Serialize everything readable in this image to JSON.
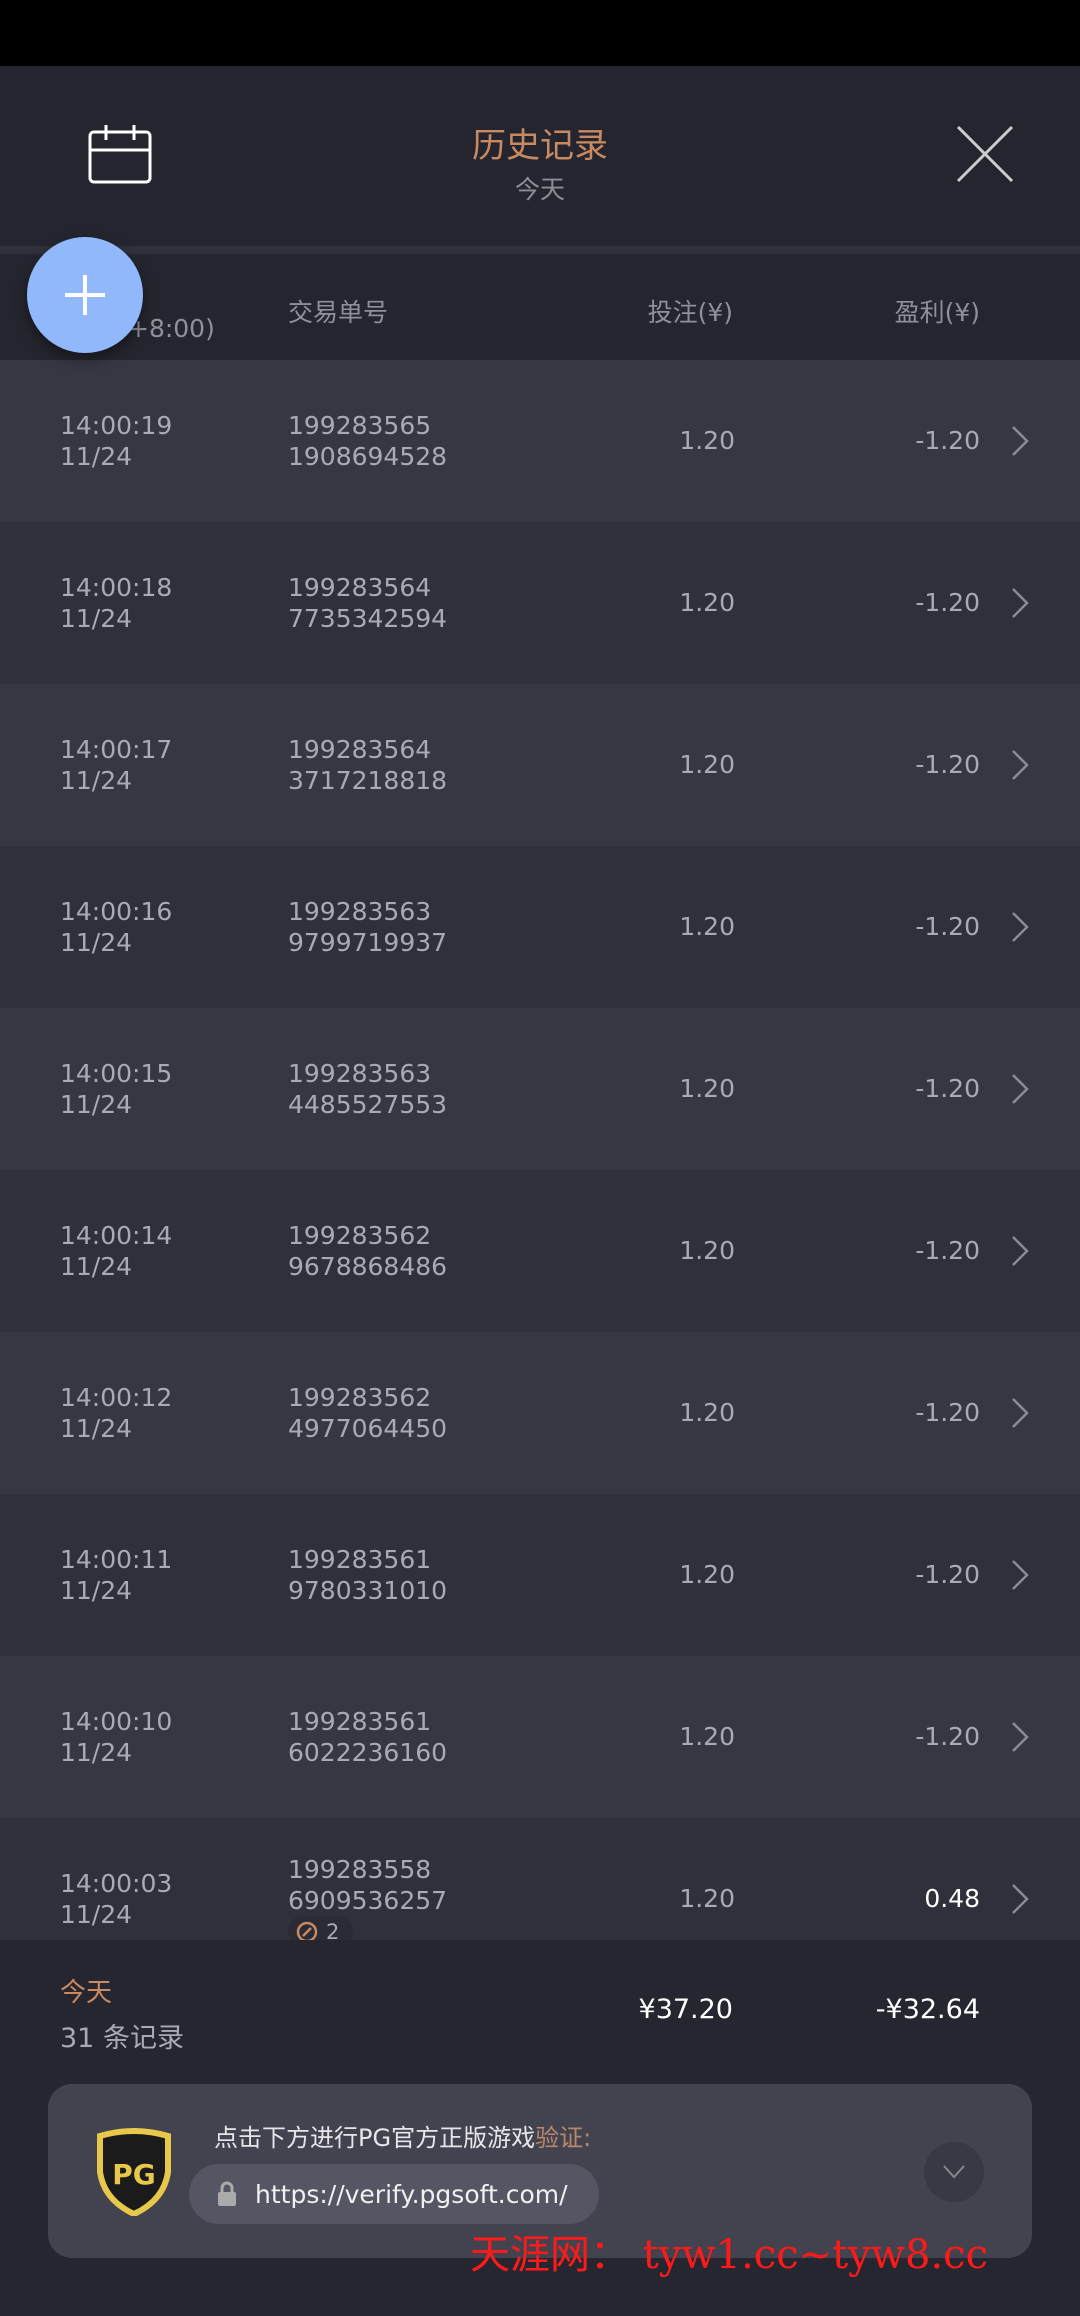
{
  "header": {
    "title": "历史记录",
    "subtitle": "今天"
  },
  "columns": {
    "time": "+8:00)",
    "id": "交易单号",
    "bet": "投注(¥)",
    "profit": "盈利(¥)"
  },
  "rows": [
    {
      "time": "14:00:19",
      "date": "11/24",
      "id1": "199283565",
      "id2": "1908694528",
      "bet": "1.20",
      "profit": "-1.20"
    },
    {
      "time": "14:00:18",
      "date": "11/24",
      "id1": "199283564",
      "id2": "7735342594",
      "bet": "1.20",
      "profit": "-1.20"
    },
    {
      "time": "14:00:17",
      "date": "11/24",
      "id1": "199283564",
      "id2": "3717218818",
      "bet": "1.20",
      "profit": "-1.20"
    },
    {
      "time": "14:00:16",
      "date": "11/24",
      "id1": "199283563",
      "id2": "9799719937",
      "bet": "1.20",
      "profit": "-1.20"
    },
    {
      "time": "14:00:15",
      "date": "11/24",
      "id1": "199283563",
      "id2": "4485527553",
      "bet": "1.20",
      "profit": "-1.20"
    },
    {
      "time": "14:00:14",
      "date": "11/24",
      "id1": "199283562",
      "id2": "9678868486",
      "bet": "1.20",
      "profit": "-1.20"
    },
    {
      "time": "14:00:12",
      "date": "11/24",
      "id1": "199283562",
      "id2": "4977064450",
      "bet": "1.20",
      "profit": "-1.20"
    },
    {
      "time": "14:00:11",
      "date": "11/24",
      "id1": "199283561",
      "id2": "9780331010",
      "bet": "1.20",
      "profit": "-1.20"
    },
    {
      "time": "14:00:10",
      "date": "11/24",
      "id1": "199283561",
      "id2": "6022236160",
      "bet": "1.20",
      "profit": "-1.20"
    },
    {
      "time": "14:00:03",
      "date": "11/24",
      "id1": "199283558",
      "id2": "6909536257",
      "bet": "1.20",
      "profit": "0.48",
      "badge": "2"
    }
  ],
  "footer": {
    "period": "今天",
    "count": "31 条记录",
    "total_bet": "¥37.20",
    "total_profit": "-¥32.64"
  },
  "banner": {
    "message": "点击下方进行PG官方正版游戏",
    "highlight": "验证:",
    "url": "https://verify.pgsoft.com/",
    "logo": "PG"
  },
  "watermark": "天涯网： tyw1.cc~tyw8.cc",
  "colors": {
    "accent": "#c98a62",
    "fab": "#90b8fb",
    "background": "#252630"
  }
}
